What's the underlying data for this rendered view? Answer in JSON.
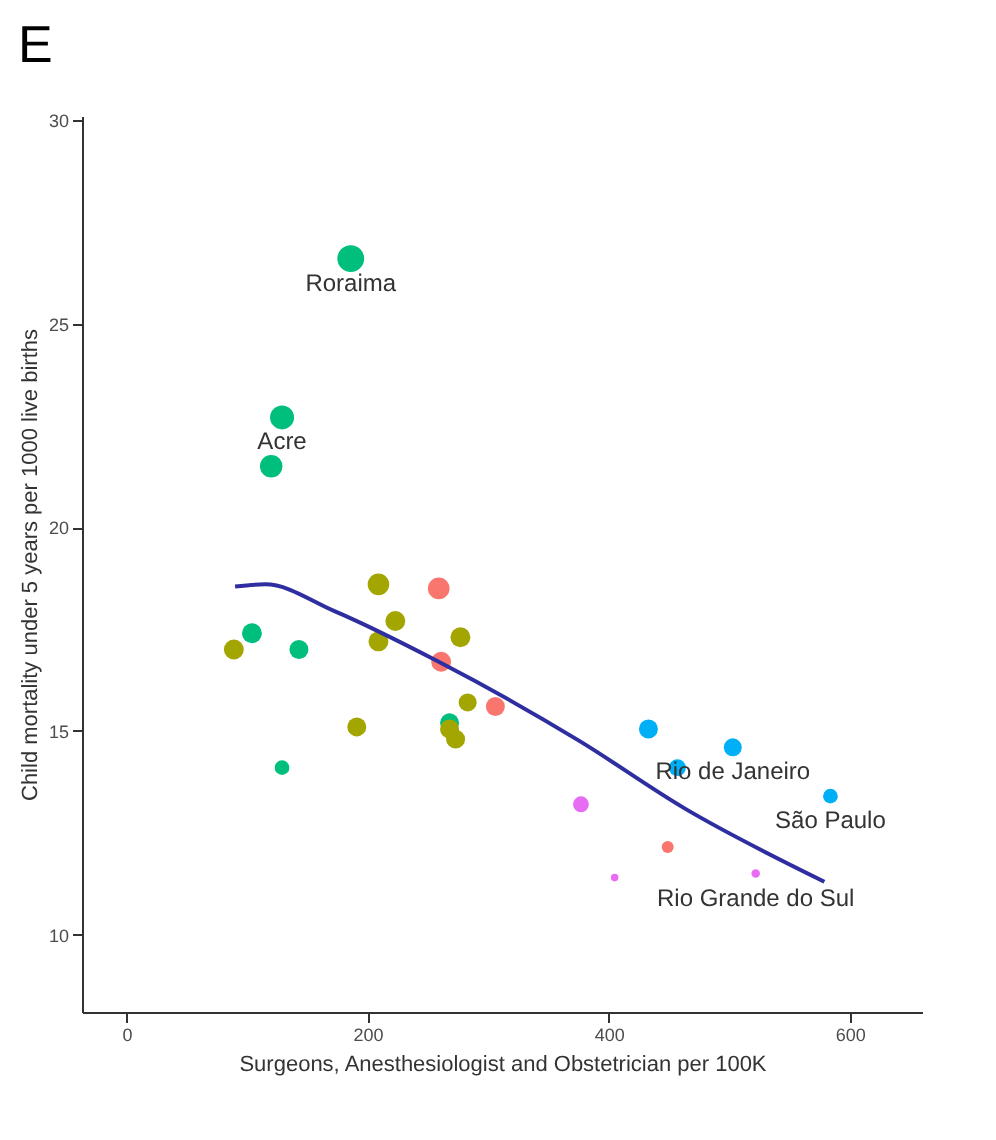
{
  "chart_data": {
    "type": "bubble",
    "title": "E",
    "xlabel": "Surgeons, Anesthesiologist and Obstetrician per 100K",
    "ylabel": "Child mortality under 5 years per 1000 live births",
    "xlim": [
      -37,
      660
    ],
    "xticks": [
      0,
      200,
      400,
      600
    ],
    "ylim": [
      8.1,
      30.1
    ],
    "yticks": [
      10,
      15,
      20,
      25,
      30
    ],
    "grid": false,
    "marker": "circle",
    "series": [
      {
        "color": "#00bf7d",
        "x": [
          186,
          129,
          120,
          104,
          143,
          268,
          129
        ],
        "values": [
          26.6,
          22.7,
          21.5,
          17.4,
          17.0,
          15.2,
          14.1
        ],
        "sizes": [
          1,
          0.8,
          0.7,
          0.55,
          0.5,
          0.5,
          0.3
        ]
      },
      {
        "color": "#a3a500",
        "x": [
          89,
          209,
          223,
          209,
          277,
          191,
          283,
          268,
          273
        ],
        "values": [
          17.0,
          18.6,
          17.7,
          17.2,
          17.3,
          15.1,
          15.7,
          15.05,
          14.8
        ],
        "sizes": [
          0.55,
          0.65,
          0.55,
          0.55,
          0.55,
          0.5,
          0.45,
          0.5,
          0.5
        ]
      },
      {
        "color": "#f8766d",
        "x": [
          259,
          261,
          306,
          449
        ],
        "values": [
          18.5,
          16.7,
          15.6,
          12.15
        ],
        "sizes": [
          0.65,
          0.55,
          0.5,
          0.2
        ]
      },
      {
        "color": "#00b0f6",
        "x": [
          433,
          457,
          503,
          584
        ],
        "values": [
          15.05,
          14.1,
          14.6,
          13.4
        ],
        "sizes": [
          0.5,
          0.4,
          0.45,
          0.3
        ]
      },
      {
        "color": "#e76bf3",
        "x": [
          377,
          405,
          522
        ],
        "values": [
          13.2,
          11.4,
          11.5
        ],
        "sizes": [
          0.35,
          0.08,
          0.1
        ]
      },
      {
        "type": "line",
        "marker": "none",
        "color": "#2e2ea0",
        "x": [
          90,
          115,
          172,
          259,
          376,
          463,
          579
        ],
        "values": [
          18.55,
          18.6,
          17.95,
          16.7,
          14.75,
          13.1,
          11.3
        ]
      }
    ],
    "annotations": [
      {
        "text": "Roraima",
        "x": 186,
        "y": 26.6
      },
      {
        "text": "Acre",
        "x": 129,
        "y": 22.7
      },
      {
        "text": "Rio de Janeiro",
        "x": 503,
        "y": 14.6
      },
      {
        "text": "São Paulo",
        "x": 584,
        "y": 13.4
      },
      {
        "text": "Rio Grande do Sul",
        "x": 522,
        "y": 11.5
      }
    ]
  }
}
